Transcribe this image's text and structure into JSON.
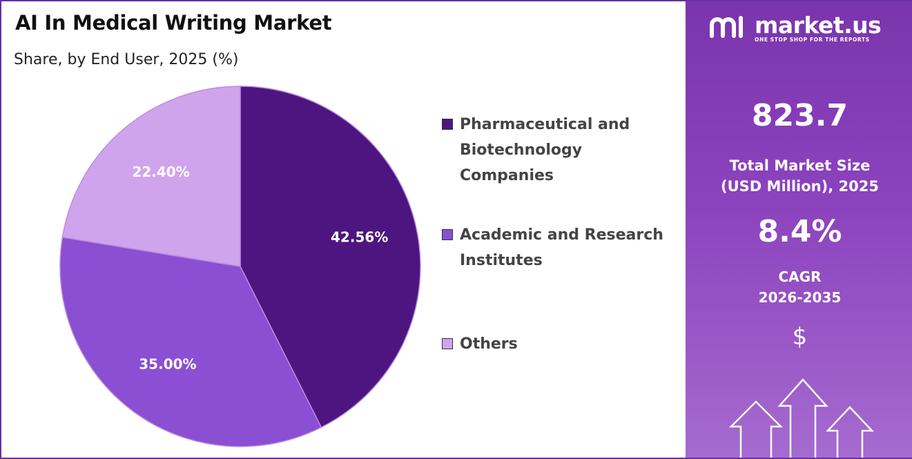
{
  "header": {
    "title": "AI In Medical Writing Market",
    "subtitle": "Share, by End User, 2025 (%)"
  },
  "chart_data": {
    "type": "pie",
    "title": "AI In Medical Writing Market",
    "subtitle": "Share, by End User, 2025 (%)",
    "start_angle_deg": 0,
    "direction": "clockwise",
    "legend_position": "right",
    "slices": [
      {
        "label": "Pharmaceutical and Biotechnology Companies",
        "legend_lines": [
          "Pharmaceutical and",
          "Biotechnology",
          "Companies"
        ],
        "value": 42.56,
        "display": "42.56%",
        "color": "#4d1580"
      },
      {
        "label": "Academic and Research Institutes",
        "legend_lines": [
          "Academic and Research",
          "Institutes"
        ],
        "value": 35.0,
        "display": "35.00%",
        "color": "#8a4fd2"
      },
      {
        "label": "Others",
        "legend_lines": [
          "Others"
        ],
        "value": 22.4,
        "display": "22.40%",
        "color": "#cfa4ec"
      }
    ]
  },
  "sidebar": {
    "brand": {
      "name": "market.us",
      "tagline": "ONE STOP SHOP FOR THE REPORTS"
    },
    "market_size": {
      "value": "823.7",
      "label_line1": "Total Market Size",
      "label_line2": "(USD Million), 2025"
    },
    "cagr": {
      "value": "8.4%",
      "label_line1": "CAGR",
      "label_line2": "2026-2035"
    },
    "currency_symbol": "$",
    "colors": {
      "panel": "#8c43be",
      "accent_dark": "#4d1580"
    }
  }
}
